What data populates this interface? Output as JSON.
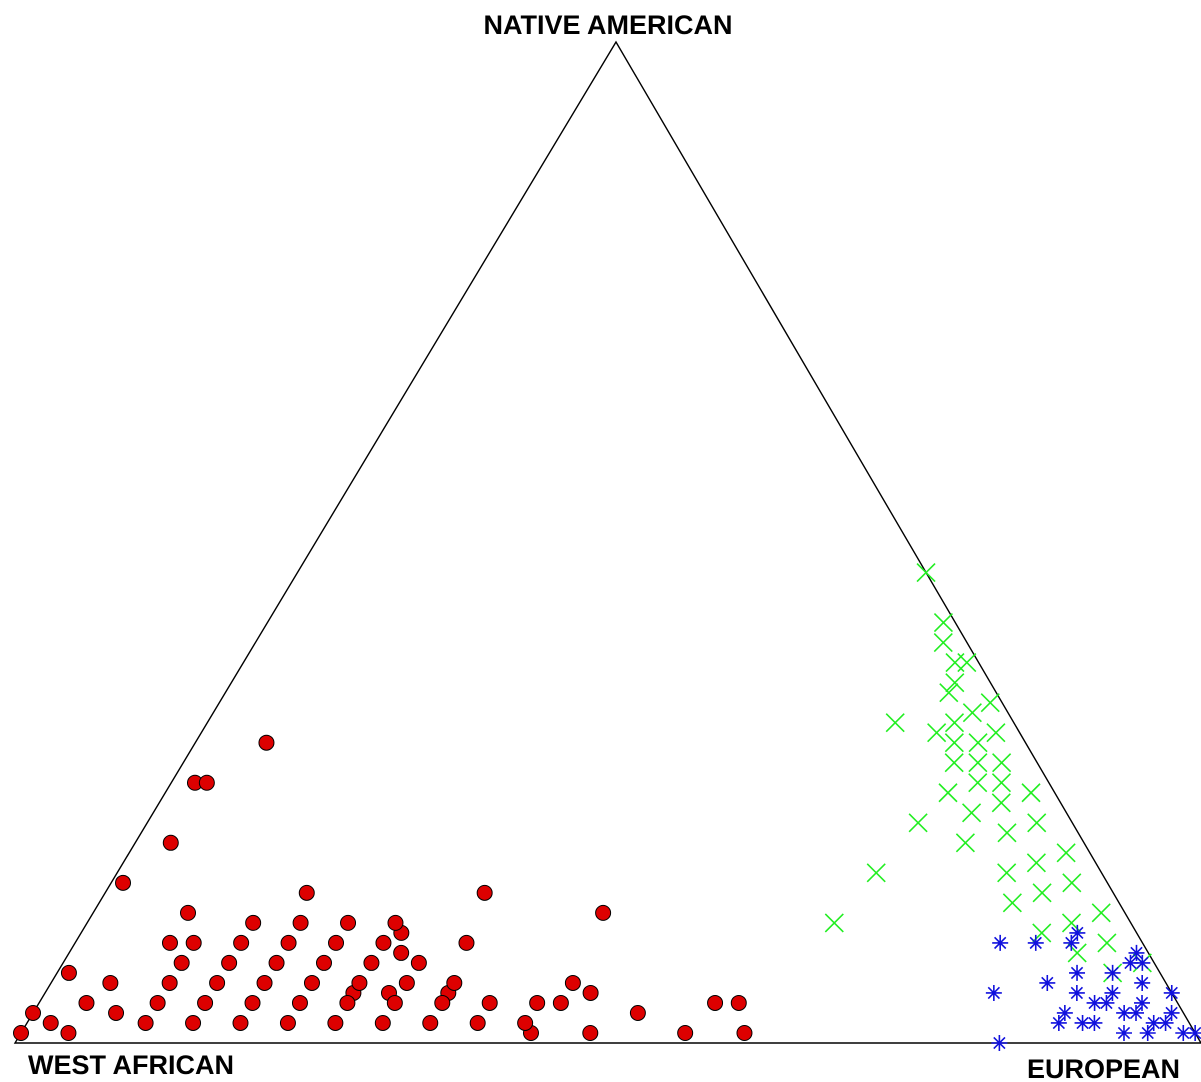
{
  "chart_data": {
    "type": "scatter",
    "subtype": "ternary",
    "title": "",
    "vertices": {
      "top": "NATIVE AMERICAN",
      "left": "WEST AFRICAN",
      "right": "EUROPEAN"
    },
    "axis_order": [
      "WEST AFRICAN",
      "EUROPEAN",
      "NATIVE AMERICAN"
    ],
    "grid": false,
    "legend": "none",
    "series": [
      {
        "marker": "filled-circle",
        "color": "#dd0000",
        "points": [
          [
            0.72,
            0.02,
            0.26
          ],
          [
            0.64,
            0.06,
            0.3
          ],
          [
            0.77,
            0.03,
            0.2
          ],
          [
            0.71,
            0.03,
            0.26
          ],
          [
            0.83,
            0.01,
            0.16
          ],
          [
            0.92,
            0.01,
            0.07
          ],
          [
            0.89,
            0.05,
            0.06
          ],
          [
            0.79,
            0.08,
            0.13
          ],
          [
            0.82,
            0.08,
            0.1
          ],
          [
            0.68,
            0.17,
            0.15
          ],
          [
            0.53,
            0.32,
            0.15
          ],
          [
            0.44,
            0.43,
            0.13
          ],
          [
            0.62,
            0.27,
            0.11
          ],
          [
            0.57,
            0.33,
            0.1
          ],
          [
            0.63,
            0.28,
            0.09
          ],
          [
            0.5,
            0.44,
            0.06
          ],
          [
            0.49,
            0.46,
            0.05
          ],
          [
            0.39,
            0.57,
            0.04
          ],
          [
            0.37,
            0.59,
            0.04
          ],
          [
            0.38,
            0.61,
            0.01
          ],
          [
            0.43,
            0.56,
            0.01
          ],
          [
            0.51,
            0.48,
            0.01
          ],
          [
            0.56,
            0.43,
            0.01
          ],
          [
            0.46,
            0.51,
            0.03
          ],
          [
            0.52,
            0.44,
            0.04
          ],
          [
            0.61,
            0.34,
            0.05
          ],
          [
            0.69,
            0.26,
            0.05
          ],
          [
            0.66,
            0.29,
            0.05
          ],
          [
            0.92,
            0.04,
            0.04
          ],
          [
            0.96,
            0.02,
            0.02
          ],
          [
            0.99,
            0.0,
            0.01
          ],
          [
            0.95,
            0.04,
            0.01
          ],
          [
            0.97,
            0.0,
            0.03
          ],
          [
            0.9,
            0.07,
            0.03
          ],
          [
            0.88,
            0.1,
            0.02
          ],
          [
            0.84,
            0.14,
            0.02
          ],
          [
            0.8,
            0.18,
            0.02
          ],
          [
            0.76,
            0.22,
            0.02
          ],
          [
            0.72,
            0.26,
            0.02
          ],
          [
            0.68,
            0.3,
            0.02
          ],
          [
            0.64,
            0.34,
            0.02
          ],
          [
            0.6,
            0.38,
            0.02
          ],
          [
            0.56,
            0.42,
            0.02
          ],
          [
            0.86,
            0.1,
            0.04
          ],
          [
            0.82,
            0.14,
            0.04
          ],
          [
            0.78,
            0.18,
            0.04
          ],
          [
            0.74,
            0.22,
            0.04
          ],
          [
            0.7,
            0.26,
            0.04
          ],
          [
            0.66,
            0.3,
            0.04
          ],
          [
            0.62,
            0.34,
            0.04
          ],
          [
            0.58,
            0.38,
            0.04
          ],
          [
            0.54,
            0.42,
            0.04
          ],
          [
            0.84,
            0.1,
            0.06
          ],
          [
            0.8,
            0.14,
            0.06
          ],
          [
            0.76,
            0.18,
            0.06
          ],
          [
            0.72,
            0.22,
            0.06
          ],
          [
            0.68,
            0.26,
            0.06
          ],
          [
            0.64,
            0.3,
            0.06
          ],
          [
            0.6,
            0.34,
            0.06
          ],
          [
            0.82,
            0.1,
            0.08
          ],
          [
            0.78,
            0.14,
            0.08
          ],
          [
            0.74,
            0.18,
            0.08
          ],
          [
            0.7,
            0.22,
            0.08
          ],
          [
            0.66,
            0.26,
            0.08
          ],
          [
            0.62,
            0.3,
            0.08
          ],
          [
            0.8,
            0.1,
            0.1
          ],
          [
            0.76,
            0.14,
            0.1
          ],
          [
            0.72,
            0.18,
            0.1
          ],
          [
            0.68,
            0.22,
            0.1
          ],
          [
            0.64,
            0.26,
            0.1
          ],
          [
            0.74,
            0.14,
            0.12
          ],
          [
            0.7,
            0.18,
            0.12
          ],
          [
            0.66,
            0.22,
            0.12
          ],
          [
            0.62,
            0.26,
            0.12
          ]
        ]
      },
      {
        "marker": "x-cross",
        "color": "#22ee22",
        "points": [
          [
            0.0,
            0.53,
            0.47
          ],
          [
            0.01,
            0.57,
            0.42
          ],
          [
            0.02,
            0.58,
            0.4
          ],
          [
            0.01,
            0.61,
            0.38
          ],
          [
            0.02,
            0.6,
            0.38
          ],
          [
            0.03,
            0.61,
            0.36
          ],
          [
            0.01,
            0.65,
            0.34
          ],
          [
            0.04,
            0.61,
            0.35
          ],
          [
            0.03,
            0.64,
            0.33
          ],
          [
            0.05,
            0.63,
            0.32
          ],
          [
            0.02,
            0.67,
            0.31
          ],
          [
            0.04,
            0.66,
            0.3
          ],
          [
            0.06,
            0.64,
            0.3
          ],
          [
            0.03,
            0.69,
            0.28
          ],
          [
            0.05,
            0.67,
            0.28
          ],
          [
            0.07,
            0.65,
            0.28
          ],
          [
            0.04,
            0.7,
            0.26
          ],
          [
            0.06,
            0.68,
            0.26
          ],
          [
            0.09,
            0.66,
            0.25
          ],
          [
            0.02,
            0.73,
            0.25
          ],
          [
            0.05,
            0.71,
            0.24
          ],
          [
            0.08,
            0.69,
            0.23
          ],
          [
            0.03,
            0.75,
            0.22
          ],
          [
            0.06,
            0.73,
            0.21
          ],
          [
            0.1,
            0.7,
            0.2
          ],
          [
            0.02,
            0.79,
            0.19
          ],
          [
            0.05,
            0.77,
            0.18
          ],
          [
            0.08,
            0.75,
            0.17
          ],
          [
            0.03,
            0.81,
            0.16
          ],
          [
            0.06,
            0.79,
            0.15
          ],
          [
            0.09,
            0.77,
            0.14
          ],
          [
            0.02,
            0.85,
            0.13
          ],
          [
            0.05,
            0.83,
            0.12
          ],
          [
            0.08,
            0.81,
            0.11
          ],
          [
            0.03,
            0.87,
            0.1
          ],
          [
            0.06,
            0.85,
            0.09
          ],
          [
            0.01,
            0.91,
            0.08
          ],
          [
            0.04,
            0.89,
            0.07
          ],
          [
            0.19,
            0.64,
            0.17
          ],
          [
            0.25,
            0.63,
            0.12
          ],
          [
            0.13,
            0.65,
            0.22
          ],
          [
            0.07,
            0.62,
            0.31
          ],
          [
            0.1,
            0.58,
            0.32
          ]
        ]
      },
      {
        "marker": "asterisk",
        "color": "#1111dd",
        "points": [
          [
            0.05,
            0.84,
            0.11
          ],
          [
            0.06,
            0.84,
            0.1
          ],
          [
            0.01,
            0.9,
            0.09
          ],
          [
            0.01,
            0.91,
            0.08
          ],
          [
            0.09,
            0.81,
            0.1
          ],
          [
            0.12,
            0.78,
            0.1
          ],
          [
            0.15,
            0.8,
            0.05
          ],
          [
            0.11,
            0.87,
            0.02
          ],
          [
            0.17,
            0.83,
            0.0
          ],
          [
            0.06,
            0.9,
            0.04
          ],
          [
            0.04,
            0.93,
            0.03
          ],
          [
            0.03,
            0.95,
            0.02
          ],
          [
            0.01,
            0.98,
            0.01
          ],
          [
            0.0,
            0.99,
            0.01
          ],
          [
            0.02,
            0.96,
            0.02
          ],
          [
            0.05,
            0.92,
            0.03
          ],
          [
            0.07,
            0.89,
            0.04
          ],
          [
            0.03,
            0.93,
            0.04
          ],
          [
            0.08,
            0.87,
            0.05
          ],
          [
            0.02,
            0.92,
            0.06
          ],
          [
            0.0,
            0.95,
            0.05
          ],
          [
            0.01,
            0.96,
            0.03
          ],
          [
            0.04,
            0.95,
            0.01
          ],
          [
            0.06,
            0.93,
            0.01
          ],
          [
            0.08,
            0.9,
            0.02
          ],
          [
            0.1,
            0.87,
            0.03
          ],
          [
            0.09,
            0.89,
            0.02
          ],
          [
            0.05,
            0.9,
            0.05
          ],
          [
            0.07,
            0.86,
            0.07
          ],
          [
            0.04,
            0.89,
            0.07
          ],
          [
            0.02,
            0.9,
            0.08
          ],
          [
            0.1,
            0.84,
            0.06
          ]
        ]
      }
    ]
  }
}
